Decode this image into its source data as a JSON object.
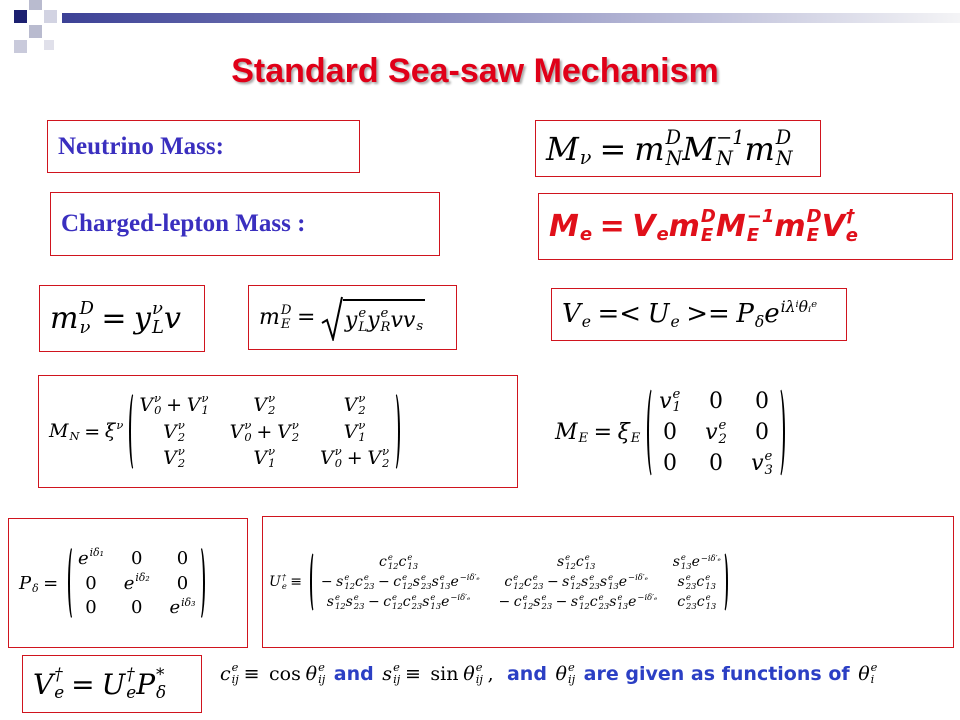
{
  "title": "Standard Sea-saw Mechanism",
  "labels": {
    "neutrino": "Neutrino Mass:",
    "charged_lepton": "Charged-lepton Mass :"
  },
  "formulas": [
    {
      "lhs": [
        {
          "b": "M",
          "s": "ν"
        },
        {
          "b": "="
        },
        {
          "b": "m",
          "p": "D",
          "s": "N"
        },
        {
          "b": "M",
          "p": "−1",
          "s": "N"
        },
        {
          "b": "m",
          "p": "D",
          "s": "N"
        }
      ]
    },
    {
      "lhs": [
        {
          "b": "M",
          "s": "e"
        },
        {
          "b": "="
        },
        {
          "b": "V",
          "s": "e"
        },
        {
          "b": "m",
          "p": "D",
          "s": "E"
        },
        {
          "b": "M",
          "p": "−1",
          "s": "E"
        },
        {
          "b": "m",
          "p": "D",
          "s": "E"
        },
        {
          "b": "V",
          "p": "†",
          "s": "e"
        }
      ]
    },
    {
      "lhs": [
        {
          "b": "m",
          "p": "D",
          "s": "ν"
        },
        {
          "b": "="
        },
        {
          "b": "y",
          "p": "ν",
          "s": "L"
        },
        {
          "b": "v"
        }
      ]
    },
    {
      "lhs": [
        {
          "b": "m",
          "p": "D",
          "s": "E"
        },
        {
          "b": "="
        },
        {
          "sqrt": [
            {
              "b": "y",
              "p": "e",
              "s": "L"
            },
            {
              "b": "y",
              "p": "e",
              "s": "R"
            },
            {
              "b": "v"
            },
            {
              "b": "v",
              "s": "s"
            }
          ]
        }
      ]
    },
    {
      "lhs": [
        {
          "b": "V",
          "s": "e"
        },
        {
          "b": "=<"
        },
        {
          "b": "U",
          "s": "e"
        },
        {
          "b": ">="
        },
        {
          "b": "P",
          "s": "δ"
        },
        {
          "b": "e",
          "p": "iλⁱθᵢᵉ"
        }
      ]
    },
    {
      "lhs": [
        {
          "b": "M",
          "s": "N"
        },
        {
          "b": "="
        },
        {
          "b": "ξ",
          "p": "ν"
        }
      ],
      "matrix": [
        [
          [
            {
              "b": "V",
              "p": "ν",
              "s": "0"
            },
            {
              "b": "+"
            },
            {
              "b": "V",
              "p": "ν",
              "s": "1"
            }
          ],
          [
            {
              "b": "V",
              "p": "ν",
              "s": "2"
            }
          ],
          [
            {
              "b": "V",
              "p": "ν",
              "s": "2"
            }
          ]
        ],
        [
          [
            {
              "b": "V",
              "p": "ν",
              "s": "2"
            }
          ],
          [
            {
              "b": "V",
              "p": "ν",
              "s": "0"
            },
            {
              "b": "+"
            },
            {
              "b": "V",
              "p": "ν",
              "s": "2"
            }
          ],
          [
            {
              "b": "V",
              "p": "ν",
              "s": "1"
            }
          ]
        ],
        [
          [
            {
              "b": "V",
              "p": "ν",
              "s": "2"
            }
          ],
          [
            {
              "b": "V",
              "p": "ν",
              "s": "1"
            }
          ],
          [
            {
              "b": "V",
              "p": "ν",
              "s": "0"
            },
            {
              "b": "+"
            },
            {
              "b": "V",
              "p": "ν",
              "s": "2"
            }
          ]
        ]
      ]
    },
    {
      "lhs": [
        {
          "b": "M",
          "s": "E"
        },
        {
          "b": "="
        },
        {
          "b": "ξ",
          "s": "E"
        }
      ],
      "matrix": [
        [
          [
            {
              "b": "v",
              "p": "e",
              "s": "1"
            }
          ],
          [
            {
              "b": "0"
            }
          ],
          [
            {
              "b": "0"
            }
          ]
        ],
        [
          [
            {
              "b": "0"
            }
          ],
          [
            {
              "b": "v",
              "p": "e",
              "s": "2"
            }
          ],
          [
            {
              "b": "0"
            }
          ]
        ],
        [
          [
            {
              "b": "0"
            }
          ],
          [
            {
              "b": "0"
            }
          ],
          [
            {
              "b": "v",
              "p": "e",
              "s": "3"
            }
          ]
        ]
      ]
    },
    {
      "lhs": [
        {
          "b": "P",
          "s": "δ"
        },
        {
          "b": "="
        }
      ],
      "matrix": [
        [
          [
            {
              "b": "e",
              "p": "iδ₁"
            }
          ],
          [
            {
              "b": "0"
            }
          ],
          [
            {
              "b": "0"
            }
          ]
        ],
        [
          [
            {
              "b": "0"
            }
          ],
          [
            {
              "b": "e",
              "p": "iδ₂"
            }
          ],
          [
            {
              "b": "0"
            }
          ]
        ],
        [
          [
            {
              "b": "0"
            }
          ],
          [
            {
              "b": "0"
            }
          ],
          [
            {
              "b": "e",
              "p": "iδ₃"
            }
          ]
        ]
      ]
    },
    {
      "lhs": [
        {
          "b": "U",
          "p": "†",
          "s": "e"
        },
        {
          "b": "≡"
        }
      ],
      "matrix": [
        [
          [
            {
              "b": "c",
              "p": "e",
              "s": "12"
            },
            {
              "b": "c",
              "p": "e",
              "s": "13"
            }
          ],
          [
            {
              "b": "s",
              "p": "e",
              "s": "12"
            },
            {
              "b": "c",
              "p": "e",
              "s": "13"
            }
          ],
          [
            {
              "b": "s",
              "p": "e",
              "s": "13"
            },
            {
              "b": "e",
              "p": "−iδ′ₑ"
            }
          ]
        ],
        [
          [
            {
              "b": "−"
            },
            {
              "b": "s",
              "p": "e",
              "s": "12"
            },
            {
              "b": "c",
              "p": "e",
              "s": "23"
            },
            {
              "b": "−"
            },
            {
              "b": "c",
              "p": "e",
              "s": "12"
            },
            {
              "b": "s",
              "p": "e",
              "s": "23"
            },
            {
              "b": "s",
              "p": "e",
              "s": "13"
            },
            {
              "b": "e",
              "p": "−iδ′ₑ"
            }
          ],
          [
            {
              "b": "c",
              "p": "e",
              "s": "12"
            },
            {
              "b": "c",
              "p": "e",
              "s": "23"
            },
            {
              "b": "−"
            },
            {
              "b": "s",
              "p": "e",
              "s": "12"
            },
            {
              "b": "s",
              "p": "e",
              "s": "23"
            },
            {
              "b": "s",
              "p": "e",
              "s": "13"
            },
            {
              "b": "e",
              "p": "−iδ′ₑ"
            }
          ],
          [
            {
              "b": "s",
              "p": "e",
              "s": "23"
            },
            {
              "b": "c",
              "p": "e",
              "s": "13"
            }
          ]
        ],
        [
          [
            {
              "b": "s",
              "p": "e",
              "s": "12"
            },
            {
              "b": "s",
              "p": "e",
              "s": "23"
            },
            {
              "b": "−"
            },
            {
              "b": "c",
              "p": "e",
              "s": "12"
            },
            {
              "b": "c",
              "p": "e",
              "s": "23"
            },
            {
              "b": "s",
              "p": "e",
              "s": "13"
            },
            {
              "b": "e",
              "p": "−iδ′ₑ"
            }
          ],
          [
            {
              "b": "−"
            },
            {
              "b": "c",
              "p": "e",
              "s": "12"
            },
            {
              "b": "s",
              "p": "e",
              "s": "23"
            },
            {
              "b": "−"
            },
            {
              "b": "s",
              "p": "e",
              "s": "12"
            },
            {
              "b": "c",
              "p": "e",
              "s": "23"
            },
            {
              "b": "s",
              "p": "e",
              "s": "13"
            },
            {
              "b": "e",
              "p": "−iδ′ₑ"
            }
          ],
          [
            {
              "b": "c",
              "p": "e",
              "s": "23"
            },
            {
              "b": "c",
              "p": "e",
              "s": "13"
            }
          ]
        ]
      ]
    },
    {
      "lhs": [
        {
          "b": "V",
          "p": "†",
          "s": "e"
        },
        {
          "b": "="
        },
        {
          "b": "U",
          "p": "†",
          "s": "e"
        },
        {
          "b": "P",
          "p": "*",
          "s": "δ"
        }
      ]
    }
  ],
  "footnote": [
    {
      "math": [
        {
          "b": "c",
          "p": "e",
          "s": "ij"
        },
        {
          "b": "≡"
        },
        {
          "b": "cos"
        },
        {
          "b": "θ",
          "p": "e",
          "s": "ij"
        }
      ]
    },
    {
      "text": "and"
    },
    {
      "math": [
        {
          "b": "s",
          "p": "e",
          "s": "ij"
        },
        {
          "b": "≡"
        },
        {
          "b": "sin"
        },
        {
          "b": "θ",
          "p": "e",
          "s": "ij"
        },
        {
          "b": ","
        }
      ]
    },
    {
      "text": "and"
    },
    {
      "math": [
        {
          "b": "θ",
          "p": "e",
          "s": "ij"
        }
      ]
    },
    {
      "text": "are given as functions of"
    },
    {
      "math": [
        {
          "b": "θ",
          "p": "e",
          "s": "i"
        }
      ]
    }
  ]
}
